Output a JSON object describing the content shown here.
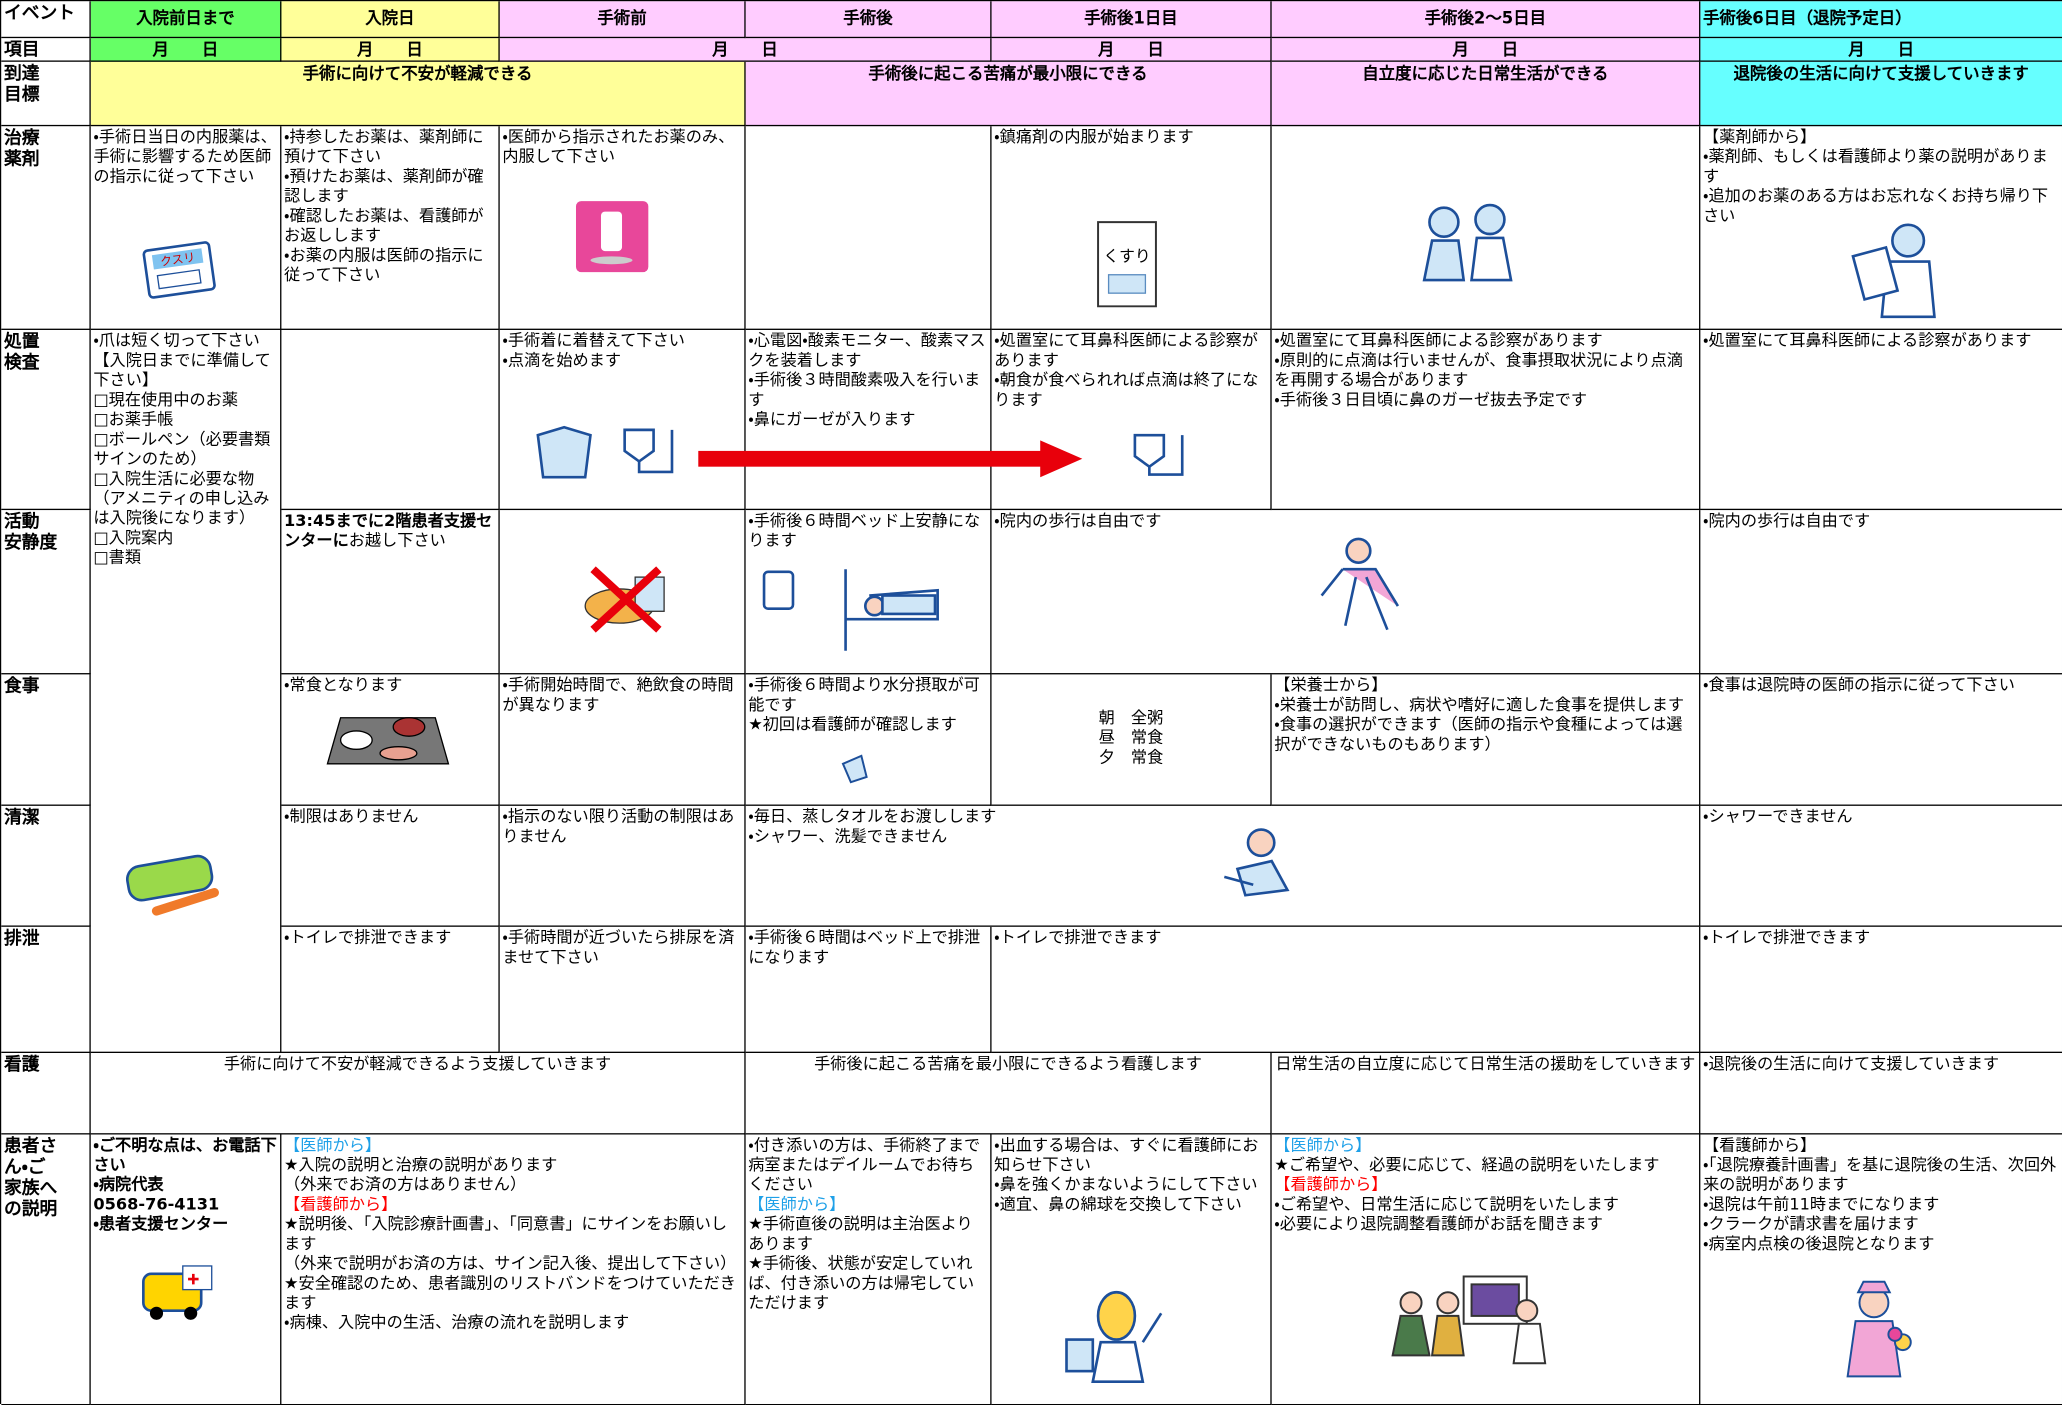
{
  "header": {
    "label": "イベント",
    "columns": [
      "入院前日まで",
      "入院日",
      "手術前",
      "手術後",
      "手術後1日目",
      "手術後2～5日目",
      "手術後6日目（退院予定日）"
    ]
  },
  "dates": {
    "label": "項目",
    "cells": [
      "月　　日",
      "月　　日",
      "月　　日",
      "月　　日",
      "月　　日",
      "月　　日"
    ]
  },
  "goals": {
    "label": [
      "到達",
      "目標"
    ],
    "cells": [
      "手術に向けて不安が軽減できる",
      "手術後に起こる苦痛が最小限にできる",
      "自立度に応じた日常生活ができる",
      "退院後の生活に向けて支援していきます"
    ]
  },
  "rows": [
    {
      "label": [
        "治療",
        "薬剤"
      ],
      "icon_text": "くすり",
      "cells": [
        [
          "・手術日当日の内服薬は、手術に影響するため医師の指示に従って下さい"
        ],
        [
          "・持参したお薬は、薬剤師に預けて下さい",
          "・預けたお薬は、薬剤師が確認します",
          "・確認したお薬は、看護師がお返しします",
          "・お薬の内服は医師の指示に従って下さい"
        ],
        [
          "・医師から指示されたお薬のみ、内服して下さい"
        ],
        [
          "・鎮痛剤の内服が始まります"
        ],
        [
          "【薬剤師から】",
          "・薬剤師、もしくは看護師より薬の説明があります",
          "・追加のお薬のある方はお忘れなくお持ち帰り下さい"
        ]
      ]
    },
    {
      "label": [
        "処置",
        "検査"
      ],
      "cells": [
        [
          "・爪は短く切って下さい",
          "【入院日までに準備して下さい】",
          "□現在使用中のお薬",
          "□お薬手帳",
          "□ボールペン（必要書類サインのため）",
          "□入院生活に必要な物（アメニティの申し込みは入院後になります）",
          "□入院案内",
          "□書類"
        ],
        [
          "・手術着に着替えて下さい",
          "・点滴を始めます"
        ],
        [
          "・心電図・酸素モニター、酸素マスクを装着します",
          "・手術後３時間酸素吸入を行います",
          "・鼻にガーゼが入ります"
        ],
        [
          "・処置室にて耳鼻科医師による診察があります",
          "・朝食が食べられれば点滴は終了になります"
        ],
        [
          "・処置室にて耳鼻科医師による診察があります",
          "・原則的に点滴は行いませんが、食事摂取状況により点滴を再開する場合があります",
          "・手術後３日目頃に鼻のガーゼ抜去予定です"
        ],
        [
          "・処置室にて耳鼻科医師による診察があります"
        ]
      ]
    },
    {
      "label": [
        "活動",
        "安静度"
      ],
      "cells": [
        [
          "13:45までに2階患者支援センターに",
          "お越し下さい"
        ],
        [
          "・手術後６時間ベッド上安静になります"
        ],
        [
          "・院内の歩行は自由です"
        ],
        [
          "・院内の歩行は自由です"
        ]
      ]
    },
    {
      "label": [
        "食事"
      ],
      "cells": [
        [
          "・常食となります"
        ],
        [
          "・手術開始時間で、絶飲食の時間が異なります"
        ],
        [
          "・手術後６時間より水分摂取が可能です",
          "★初回は看護師が確認します"
        ],
        [
          "朝　全粥",
          "昼　常食",
          "夕　常食"
        ],
        [
          "【栄養士から】",
          "・栄養士が訪問し、病状や嗜好に適した食事を提供します",
          "・食事の選択ができます（医師の指示や食種によっては選択ができないものもあります）"
        ],
        [
          "・食事は退院時の医師の指示に従って下さい"
        ]
      ]
    },
    {
      "label": [
        "清潔"
      ],
      "cells": [
        [
          "・制限はありません"
        ],
        [
          "・指示のない限り活動の制限はありません"
        ],
        [
          "・毎日、蒸しタオルをお渡しします",
          "・シャワー、洗髪できません"
        ],
        [
          "・シャワーできません"
        ]
      ]
    },
    {
      "label": [
        "排泄"
      ],
      "cells": [
        [
          "・トイレで排泄できます"
        ],
        [
          "・手術時間が近づいたら排尿を済ませて下さい"
        ],
        [
          "・手術後６時間はベッド上で排泄になります"
        ],
        [
          "・トイレで排泄できます"
        ],
        [
          "・トイレで排泄できます"
        ]
      ]
    },
    {
      "label": [
        "看護"
      ],
      "cells": [
        [
          "手術に向けて不安が軽減できるよう支援していきます"
        ],
        [
          "手術後に起こる苦痛を最小限にできるよう看護します"
        ],
        [
          "日常生活の自立度に応じて日常生活の援助をしていきます"
        ],
        [
          "・退院後の生活に向けて支援していきます"
        ]
      ]
    },
    {
      "label": [
        "患者さ",
        "ん・ご",
        "家族へ",
        "の説明"
      ],
      "cells": [
        [
          "・ご不明な点は、お電話下さい",
          "・病院代表",
          "0568-76-4131",
          "・患者支援センター"
        ],
        [
          "【医師から】",
          "★入院の説明と治療の説明があります",
          "（外来でお済の方はありません）",
          "【看護師から】",
          "★説明後、「入院診療計画書」、「同意書」にサインをお願いします",
          "（外来で説明がお済の方は、サイン記入後、提出して下さい）",
          "★安全確認のため、患者識別のリストバンドをつけていただきます",
          "・病棟、入院中の生活、治療の流れを説明します"
        ],
        [
          "・付き添いの方は、手術終了まで病室またはデイルームでお待ちください",
          "【医師から】",
          "★手術直後の説明は主治医よりあります",
          "★手術後、状態が安定していれば、付き添いの方は帰宅していただけます"
        ],
        [
          "・出血する場合は、すぐに看護師にお知らせ下さい",
          "・鼻を強くかまないようにして下さい",
          "・適宜、鼻の綿球を交換して下さい"
        ],
        [
          "【医師から】",
          "★ご希望や、必要に応じて、経過の説明をいたします",
          "【看護師から】",
          "・ご希望や、日常生活に応じて説明をいたします",
          "・必要により退院調整看護師がお話を聞きます"
        ],
        [
          "【看護師から】",
          "・「退院療養計画書」を基に退院後の生活、次回外来の説明があります",
          "・退院は午前11時までになります",
          "・クラークが請求書を届けます",
          "・病室内点検の後退院となります"
        ]
      ]
    }
  ]
}
